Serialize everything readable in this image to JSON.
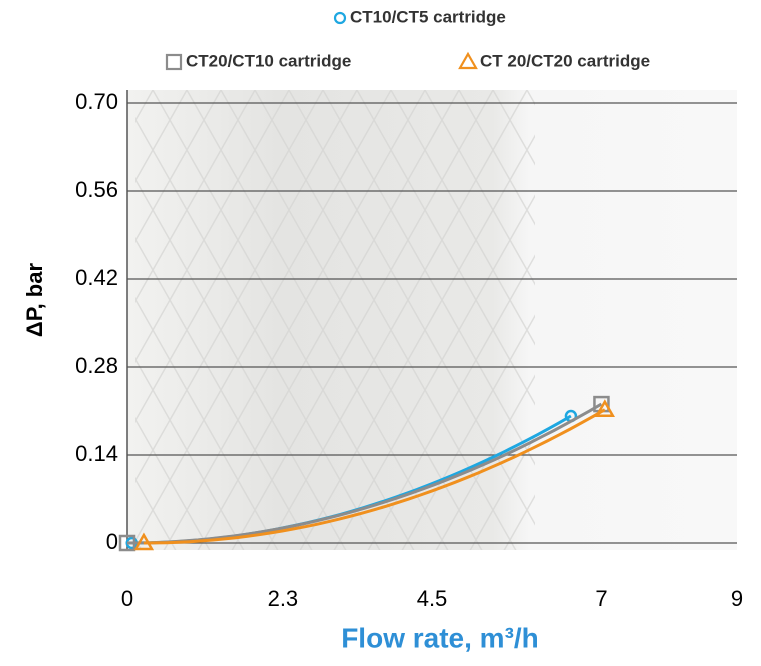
{
  "chart_data": {
    "type": "scatter",
    "fit": "quadratic",
    "x_label": "Flow rate, m³/h",
    "y_label": "ΔP, bar",
    "xlim": [
      0,
      9
    ],
    "xticks": [
      0,
      2.3,
      4.5,
      7,
      9
    ],
    "ylim": [
      0,
      0.7
    ],
    "yticks": [
      0,
      0.14,
      0.28,
      0.42,
      0.56,
      {
        "value": 0.7,
        "label": "0.70"
      }
    ],
    "grid": true,
    "legend": "top",
    "series": [
      {
        "name": "CT10/CT5 cartridge",
        "color": "#1ea7e1",
        "marker": "circle",
        "x": [
          0.07,
          6.55
        ],
        "values": [
          0,
          0.202
        ]
      },
      {
        "name": "CT20/CT10 cartridge",
        "color": "#8c8c8c",
        "marker": "square",
        "x": [
          0,
          7.0
        ],
        "values": [
          0,
          0.221
        ]
      },
      {
        "name": "CT 20/CT20 cartridge",
        "color": "#f0901e",
        "marker": "triangle",
        "x": [
          0.25,
          7.05
        ],
        "values": [
          0,
          0.212
        ]
      }
    ]
  }
}
